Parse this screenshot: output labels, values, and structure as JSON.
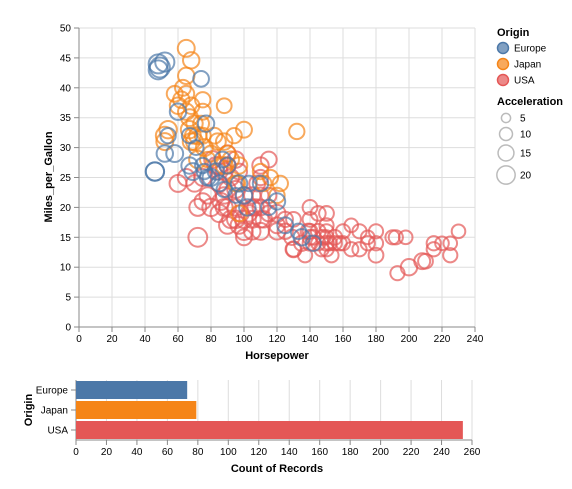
{
  "chart_data": [
    {
      "type": "scatter",
      "xlabel": "Horsepower",
      "ylabel": "Miles_per_Gallon",
      "xlim": [
        0,
        240
      ],
      "ylim": [
        0,
        50
      ],
      "x_ticks": [
        "0",
        "20",
        "40",
        "60",
        "80",
        "100",
        "120",
        "140",
        "160",
        "180",
        "200",
        "220",
        "240"
      ],
      "y_ticks": [
        "0",
        "5",
        "10",
        "15",
        "20",
        "25",
        "30",
        "35",
        "40",
        "45",
        "50"
      ],
      "grid": true,
      "size_field": "Acceleration",
      "color_field": "Origin",
      "legend_placement": "right",
      "series": [
        {
          "name": "Europe",
          "color": "#4c78a8",
          "points": [
            [
              46,
              26,
              20
            ],
            [
              46,
              26,
              20
            ],
            [
              48,
              43,
              21.5
            ],
            [
              48,
              44,
              21.7
            ],
            [
              49,
              43.4,
              23.7
            ],
            [
              52,
              44.3,
              21.8
            ],
            [
              52,
              29,
              16
            ],
            [
              54,
              32,
              14
            ],
            [
              58,
              29,
              17
            ],
            [
              60,
              36,
              16
            ],
            [
              67,
              27,
              16
            ],
            [
              67,
              32,
              14
            ],
            [
              69,
              26,
              17
            ],
            [
              71,
              30,
              13
            ],
            [
              74,
              41.5,
              14.7
            ],
            [
              75,
              27,
              14
            ],
            [
              76,
              26,
              14
            ],
            [
              77,
              34,
              16
            ],
            [
              78,
              25,
              15
            ],
            [
              80,
              25,
              17
            ],
            [
              83,
              26,
              16
            ],
            [
              85,
              24,
              15
            ],
            [
              87,
              28,
              15
            ],
            [
              88,
              23,
              14
            ],
            [
              90,
              27,
              15
            ],
            [
              95,
              22,
              13
            ],
            [
              97,
              24,
              16
            ],
            [
              100,
              22,
              16
            ],
            [
              102,
              20,
              16
            ],
            [
              103,
              24,
              14
            ],
            [
              110,
              24,
              14
            ],
            [
              115,
              20,
              14
            ],
            [
              120,
              21,
              16
            ],
            [
              125,
              17,
              15
            ],
            [
              133,
              16,
              14
            ],
            [
              135,
              15,
              16
            ],
            [
              142,
              14,
              14
            ]
          ]
        },
        {
          "name": "Japan",
          "color": "#f58518",
          "points": [
            [
              52,
              32,
              19
            ],
            [
              52,
              31,
              17
            ],
            [
              54,
              33,
              18
            ],
            [
              58,
              39,
              15
            ],
            [
              60,
              37,
              16
            ],
            [
              62,
              38,
              16
            ],
            [
              63,
              40,
              15
            ],
            [
              65,
              46.6,
              17
            ],
            [
              65,
              39,
              15
            ],
            [
              65,
              36,
              16
            ],
            [
              67,
              33,
              18
            ],
            [
              67,
              35,
              17
            ],
            [
              68,
              37,
              16
            ],
            [
              68,
              31,
              17
            ],
            [
              68,
              44.6,
              16
            ],
            [
              69,
              32,
              15
            ],
            [
              70,
              34,
              16
            ],
            [
              70,
              31,
              17
            ],
            [
              72,
              32,
              18
            ],
            [
              72,
              28,
              18
            ],
            [
              74,
              34,
              15
            ],
            [
              75,
              32,
              15
            ],
            [
              75,
              38,
              14
            ],
            [
              76,
              30,
              17
            ],
            [
              78,
              28,
              14
            ],
            [
              80,
              29,
              15
            ],
            [
              82,
              32,
              15
            ],
            [
              84,
              31,
              16
            ],
            [
              88,
              27,
              17
            ],
            [
              88,
              37,
              13
            ],
            [
              90,
              29,
              15
            ],
            [
              92,
              28,
              16
            ],
            [
              94,
              32,
              14
            ],
            [
              95,
              24,
              15
            ],
            [
              96,
              24,
              14
            ],
            [
              97,
              27,
              16
            ],
            [
              100,
              33,
              15
            ],
            [
              110,
              26,
              14
            ],
            [
              112,
              24,
              14
            ],
            [
              116,
              25,
              14
            ],
            [
              120,
              22,
              14
            ],
            [
              122,
              24,
              14
            ],
            [
              132,
              32.7,
              14
            ],
            [
              97,
              19,
              15
            ],
            [
              88,
              31,
              16
            ],
            [
              75,
              36,
              15
            ],
            [
              65,
              42,
              16
            ]
          ]
        },
        {
          "name": "USA",
          "color": "#e45756",
          "points": [
            [
              60,
              24,
              17
            ],
            [
              65,
              25,
              17
            ],
            [
              70,
              24,
              16
            ],
            [
              72,
              20,
              17
            ],
            [
              72,
              15,
              21
            ],
            [
              75,
              21,
              16
            ],
            [
              75,
              25,
              17
            ],
            [
              78,
              22,
              16
            ],
            [
              80,
              20,
              18
            ],
            [
              81,
              28,
              17
            ],
            [
              83,
              27,
              17
            ],
            [
              85,
              26,
              16
            ],
            [
              85,
              24,
              17
            ],
            [
              85,
              19,
              18
            ],
            [
              86,
              21,
              17
            ],
            [
              88,
              20,
              17
            ],
            [
              88,
              22,
              16
            ],
            [
              90,
              23,
              16
            ],
            [
              90,
              27,
              16
            ],
            [
              90,
              20,
              17
            ],
            [
              90,
              29,
              16
            ],
            [
              92,
              25,
              16
            ],
            [
              92,
              18,
              18
            ],
            [
              95,
              20,
              16
            ],
            [
              95,
              18,
              18
            ],
            [
              95,
              23,
              17
            ],
            [
              97,
              26,
              15
            ],
            [
              98,
              19,
              16
            ],
            [
              100,
              18,
              18
            ],
            [
              100,
              22,
              17
            ],
            [
              100,
              16,
              18
            ],
            [
              103,
              19,
              16
            ],
            [
              105,
              22,
              16
            ],
            [
              105,
              20,
              15
            ],
            [
              105,
              18,
              17
            ],
            [
              107,
              20,
              16
            ],
            [
              110,
              18,
              16
            ],
            [
              110,
              20,
              15
            ],
            [
              110,
              16,
              17
            ],
            [
              110,
              22,
              15
            ],
            [
              110,
              25,
              14
            ],
            [
              112,
              18,
              16
            ],
            [
              115,
              22,
              14
            ],
            [
              115,
              19,
              15
            ],
            [
              120,
              17,
              15
            ],
            [
              125,
              18,
              14
            ],
            [
              125,
              16,
              14
            ],
            [
              129,
              15,
              14
            ],
            [
              130,
              13,
              13
            ],
            [
              130,
              18,
              13
            ],
            [
              135,
              14,
              14
            ],
            [
              139,
              16,
              14
            ],
            [
              140,
              15,
              13
            ],
            [
              140,
              14,
              13
            ],
            [
              140,
              18,
              13
            ],
            [
              140,
              20,
              13
            ],
            [
              142,
              15,
              13
            ],
            [
              145,
              14,
              12
            ],
            [
              145,
              16,
              13
            ],
            [
              145,
              19,
              13
            ],
            [
              148,
              15,
              13
            ],
            [
              150,
              13,
              12
            ],
            [
              150,
              14,
              13
            ],
            [
              150,
              15,
              12
            ],
            [
              150,
              16,
              12
            ],
            [
              150,
              17,
              12
            ],
            [
              150,
              19,
              13
            ],
            [
              152,
              14,
              12
            ],
            [
              155,
              14,
              12
            ],
            [
              155,
              15,
              13
            ],
            [
              158,
              14,
              12
            ],
            [
              160,
              14,
              12
            ],
            [
              160,
              16,
              12
            ],
            [
              165,
              13,
              12
            ],
            [
              165,
              17,
              11
            ],
            [
              170,
              16,
              12
            ],
            [
              170,
              13,
              12
            ],
            [
              175,
              14,
              12
            ],
            [
              175,
              15,
              11
            ],
            [
              180,
              14,
              12
            ],
            [
              180,
              12,
              13
            ],
            [
              180,
              16,
              12
            ],
            [
              190,
              15,
              12
            ],
            [
              193,
              9,
              12
            ],
            [
              198,
              15,
              11
            ],
            [
              200,
              10,
              16
            ],
            [
              210,
              11,
              13
            ],
            [
              215,
              13,
              12
            ],
            [
              215,
              14,
              12
            ],
            [
              220,
              14,
              11
            ],
            [
              225,
              12,
              12
            ],
            [
              225,
              14,
              11
            ],
            [
              230,
              16,
              11
            ],
            [
              192,
              15,
              12
            ],
            [
              208,
              11,
              15
            ],
            [
              153,
              12,
              12
            ],
            [
              137,
              12,
              12
            ],
            [
              147,
              13,
              12
            ],
            [
              100,
              15,
              15
            ],
            [
              88,
              26,
              17
            ],
            [
              97,
              17,
              17
            ],
            [
              120,
              19,
              17
            ],
            [
              95,
              28,
              16
            ],
            [
              85,
              27,
              17
            ],
            [
              90,
              17,
              17
            ],
            [
              105,
              16,
              16
            ],
            [
              120,
              16,
              16
            ],
            [
              108,
              24,
              15
            ],
            [
              140,
              16,
              13
            ],
            [
              115,
              28,
              15
            ],
            [
              110,
              27,
              16
            ],
            [
              130,
              13,
              15
            ]
          ]
        }
      ]
    },
    {
      "type": "bar",
      "orientation": "horizontal",
      "xlabel": "Count of Records",
      "ylabel": "Origin",
      "xlim": [
        0,
        260
      ],
      "x_ticks": [
        "0",
        "20",
        "40",
        "60",
        "80",
        "100",
        "120",
        "140",
        "160",
        "180",
        "200",
        "220",
        "240",
        "260"
      ],
      "categories": [
        "Europe",
        "Japan",
        "USA"
      ],
      "values": [
        73,
        79,
        254
      ],
      "colors": [
        "#4c78a8",
        "#f58518",
        "#e45756"
      ],
      "grid": true
    }
  ],
  "legend": {
    "origin_title": "Origin",
    "origin_items": [
      {
        "label": "Europe",
        "color": "#4c78a8"
      },
      {
        "label": "Japan",
        "color": "#f58518"
      },
      {
        "label": "USA",
        "color": "#e45756"
      }
    ],
    "accel_title": "Acceleration",
    "accel_items": [
      {
        "label": "5",
        "value": 5
      },
      {
        "label": "10",
        "value": 10
      },
      {
        "label": "15",
        "value": 15
      },
      {
        "label": "20",
        "value": 20
      }
    ]
  }
}
